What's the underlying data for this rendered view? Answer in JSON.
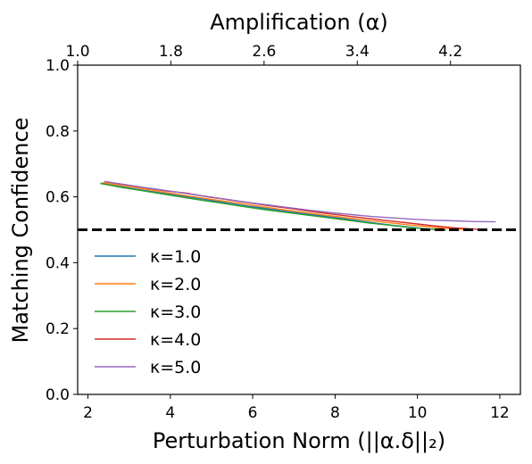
{
  "chart_data": {
    "type": "line",
    "xlabel": "Perturbation Norm (||α.δ||₂)",
    "ylabel": "Matching Confidence",
    "top_xlabel": "Amplification (α)",
    "xlim": [
      1.75,
      12.5
    ],
    "ylim": [
      0.0,
      1.0
    ],
    "x_ticks": [
      2,
      4,
      6,
      8,
      10,
      12
    ],
    "x_tick_labels": [
      "2",
      "4",
      "6",
      "8",
      "10",
      "12"
    ],
    "y_ticks": [
      0.0,
      0.2,
      0.4,
      0.6,
      0.8,
      1.0
    ],
    "y_tick_labels": [
      "0.0",
      "0.2",
      "0.4",
      "0.6",
      "0.8",
      "1.0"
    ],
    "top_ticks": [
      1.0,
      1.8,
      2.6,
      3.4,
      4.2
    ],
    "top_tick_labels": [
      "1.0",
      "1.8",
      "2.6",
      "3.4",
      "4.2"
    ],
    "top_xlim": [
      1.0,
      4.8
    ],
    "threshold": 0.5,
    "grid": false,
    "legend_position": "lower-left",
    "series": [
      {
        "name": "κ=1.0",
        "color": "#1f77b4",
        "x": [
          2.3,
          2.8,
          3.3,
          3.8,
          4.3,
          4.8,
          5.3,
          5.8,
          6.3,
          6.8,
          7.3,
          7.8,
          8.3,
          8.8,
          9.3,
          9.8,
          10.3,
          10.6
        ],
        "y": [
          0.641,
          0.631,
          0.621,
          0.611,
          0.602,
          0.593,
          0.583,
          0.573,
          0.565,
          0.556,
          0.548,
          0.54,
          0.532,
          0.523,
          0.515,
          0.508,
          0.502,
          0.5
        ]
      },
      {
        "name": "κ=2.0",
        "color": "#ff7f0e",
        "x": [
          2.35,
          2.85,
          3.35,
          3.85,
          4.35,
          4.85,
          5.35,
          5.85,
          6.35,
          6.85,
          7.35,
          7.85,
          8.35,
          8.85,
          9.35,
          9.85,
          10.35,
          10.85,
          11.3
        ],
        "y": [
          0.643,
          0.634,
          0.624,
          0.614,
          0.604,
          0.595,
          0.586,
          0.577,
          0.568,
          0.559,
          0.551,
          0.543,
          0.535,
          0.528,
          0.521,
          0.514,
          0.508,
          0.503,
          0.5
        ]
      },
      {
        "name": "κ=3.0",
        "color": "#2ca02c",
        "x": [
          2.3,
          2.8,
          3.3,
          3.8,
          4.3,
          4.8,
          5.3,
          5.8,
          6.3,
          6.8,
          7.3,
          7.8,
          8.3,
          8.8,
          9.3,
          9.8,
          10.3,
          10.7
        ],
        "y": [
          0.641,
          0.629,
          0.619,
          0.609,
          0.599,
          0.589,
          0.58,
          0.57,
          0.561,
          0.553,
          0.545,
          0.537,
          0.529,
          0.521,
          0.514,
          0.507,
          0.502,
          0.499
        ]
      },
      {
        "name": "κ=4.0",
        "color": "#d62728",
        "x": [
          2.4,
          2.9,
          3.4,
          3.9,
          4.4,
          4.9,
          5.4,
          5.9,
          6.4,
          6.9,
          7.4,
          7.9,
          8.4,
          8.9,
          9.4,
          9.9,
          10.4,
          10.9,
          11.4,
          11.7
        ],
        "y": [
          0.646,
          0.637,
          0.627,
          0.618,
          0.611,
          0.6,
          0.591,
          0.582,
          0.573,
          0.565,
          0.556,
          0.548,
          0.54,
          0.533,
          0.526,
          0.519,
          0.512,
          0.506,
          0.502,
          0.5
        ]
      },
      {
        "name": "κ=5.0",
        "color": "#9467bd",
        "x": [
          2.4,
          2.9,
          3.4,
          3.9,
          4.4,
          4.9,
          5.4,
          5.9,
          6.4,
          6.9,
          7.4,
          7.9,
          8.4,
          8.9,
          9.4,
          9.9,
          10.4,
          10.9,
          11.4,
          11.9
        ],
        "y": [
          0.647,
          0.637,
          0.628,
          0.619,
          0.61,
          0.601,
          0.592,
          0.583,
          0.575,
          0.567,
          0.559,
          0.552,
          0.546,
          0.54,
          0.536,
          0.532,
          0.529,
          0.527,
          0.525,
          0.524
        ]
      }
    ]
  }
}
